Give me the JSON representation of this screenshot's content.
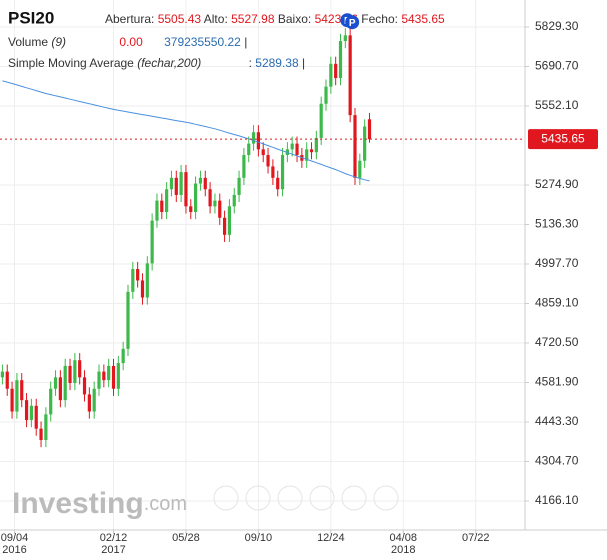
{
  "chart_data": {
    "type": "candlestick",
    "title": "PSI20",
    "header": {
      "open_label": "Abertura:",
      "high_label": "Alto:",
      "low_label": "Baixo:",
      "close_label": "Fecho:",
      "volume_name": "Volume",
      "volume_param": "(9)",
      "volume_avg": "0.00",
      "volume_value": "379235550.22",
      "separator": "|",
      "sma_name": "Simple Moving Average",
      "sma_param": "(fechar,200)",
      "sma_colon": ":"
    },
    "watermark": "Investing",
    "watermark_suffix": ".com",
    "pivot_markers": [
      "P",
      "P"
    ],
    "up_color": "#3cb94a",
    "down_color": "#e0171e",
    "sma_color": "#4a90e2",
    "open": [
      4600,
      4620,
      4560,
      4480,
      4590,
      4520,
      4450,
      4500,
      4420,
      4380,
      4470,
      4560,
      4600,
      4520,
      4640,
      4580,
      4660,
      4600,
      4540,
      4480,
      4560,
      4620,
      4590,
      4640,
      4560,
      4650,
      4700,
      4900,
      4980,
      4940,
      4880,
      5000,
      5150,
      5220,
      5180,
      5260,
      5300,
      5240,
      5320,
      5200,
      5180,
      5280,
      5300,
      5260,
      5200,
      5220,
      5160,
      5100,
      5200,
      5240,
      5300,
      5380,
      5420,
      5460,
      5400,
      5380,
      5340,
      5300,
      5260,
      5380,
      5400,
      5420,
      5380,
      5360,
      5400,
      5390,
      5440,
      5560,
      5620,
      5700,
      5650,
      5780,
      5800,
      5520,
      5300,
      5360,
      5505.43
    ],
    "high": [
      4645,
      4645,
      4585,
      4615,
      4615,
      4545,
      4525,
      4525,
      4445,
      4495,
      4585,
      4625,
      4625,
      4665,
      4665,
      4685,
      4685,
      4625,
      4565,
      4585,
      4645,
      4645,
      4665,
      4665,
      4675,
      4725,
      4925,
      5005,
      5005,
      4965,
      5025,
      5175,
      5245,
      5245,
      5285,
      5325,
      5325,
      5345,
      5345,
      5225,
      5305,
      5325,
      5325,
      5285,
      5245,
      5245,
      5185,
      5225,
      5265,
      5325,
      5405,
      5445,
      5485,
      5485,
      5425,
      5405,
      5365,
      5325,
      5405,
      5425,
      5445,
      5445,
      5405,
      5425,
      5425,
      5465,
      5585,
      5645,
      5725,
      5725,
      5805,
      5825,
      5825,
      5545,
      5385,
      5505,
      5527.98
    ],
    "low": [
      4575,
      4535,
      4455,
      4455,
      4495,
      4425,
      4425,
      4395,
      4355,
      4355,
      4445,
      4535,
      4495,
      4495,
      4555,
      4555,
      4575,
      4515,
      4455,
      4455,
      4535,
      4565,
      4565,
      4535,
      4535,
      4625,
      4675,
      4875,
      4915,
      4855,
      4855,
      4975,
      5125,
      5155,
      5155,
      5235,
      5215,
      5215,
      5175,
      5155,
      5155,
      5255,
      5235,
      5175,
      5175,
      5135,
      5075,
      5075,
      5175,
      5215,
      5275,
      5355,
      5395,
      5375,
      5355,
      5315,
      5275,
      5235,
      5235,
      5355,
      5375,
      5355,
      5335,
      5335,
      5365,
      5365,
      5415,
      5535,
      5595,
      5625,
      5625,
      5755,
      5495,
      5275,
      5275,
      5335,
      5423.46
    ],
    "close": [
      4620,
      4560,
      4480,
      4590,
      4520,
      4450,
      4500,
      4420,
      4380,
      4470,
      4560,
      4600,
      4520,
      4640,
      4580,
      4660,
      4600,
      4540,
      4480,
      4560,
      4620,
      4590,
      4640,
      4560,
      4650,
      4700,
      4900,
      4980,
      4940,
      4880,
      5000,
      5150,
      5220,
      5180,
      5260,
      5300,
      5240,
      5320,
      5200,
      5180,
      5280,
      5300,
      5260,
      5200,
      5220,
      5160,
      5100,
      5200,
      5240,
      5300,
      5380,
      5420,
      5460,
      5400,
      5380,
      5340,
      5300,
      5260,
      5380,
      5400,
      5420,
      5380,
      5360,
      5400,
      5390,
      5440,
      5560,
      5620,
      5700,
      5650,
      5780,
      5800,
      5520,
      5300,
      5360,
      5480,
      5435.65
    ],
    "sma": [
      5640,
      5636,
      5631,
      5626,
      5621,
      5616,
      5611,
      5606,
      5601,
      5596,
      5592,
      5588,
      5584,
      5580,
      5576,
      5572,
      5568,
      5564,
      5560,
      5556,
      5552,
      5548,
      5544,
      5540,
      5537,
      5534,
      5531,
      5528,
      5525,
      5522,
      5519,
      5516,
      5513,
      5510,
      5507,
      5504,
      5501,
      5498,
      5495,
      5492,
      5488,
      5484,
      5480,
      5476,
      5472,
      5467,
      5462,
      5457,
      5452,
      5447,
      5442,
      5437,
      5431,
      5425,
      5419,
      5413,
      5407,
      5401,
      5395,
      5389,
      5383,
      5377,
      5371,
      5365,
      5359,
      5353,
      5347,
      5341,
      5335,
      5329,
      5322,
      5315,
      5309,
      5303,
      5298,
      5293,
      5289.38
    ],
    "xlim": [
      -0.5,
      108.2
    ],
    "xticks": [
      {
        "value": 2.5,
        "label": "09/04"
      },
      {
        "value": 23,
        "label": "02/12"
      },
      {
        "value": 38,
        "label": "05/28"
      },
      {
        "value": 53,
        "label": "09/10"
      },
      {
        "value": 68,
        "label": "12/24"
      },
      {
        "value": 83,
        "label": "04/08"
      },
      {
        "value": 98,
        "label": "07/22"
      }
    ],
    "xtick_years": [
      {
        "value": 2.5,
        "label": "2016"
      },
      {
        "value": 23,
        "label": "2017"
      },
      {
        "value": 83,
        "label": "2018"
      }
    ],
    "ylim": [
      4064.3,
      5924.0
    ],
    "yticks": [
      {
        "value": 5829.3,
        "label": "5829.30"
      },
      {
        "value": 5690.7,
        "label": "5690.70"
      },
      {
        "value": 5552.1,
        "label": "5552.10"
      },
      {
        "value": 5274.9,
        "label": "5274.90"
      },
      {
        "value": 5136.3,
        "label": "5136.30"
      },
      {
        "value": 4997.7,
        "label": "4997.70"
      },
      {
        "value": 4859.1,
        "label": "4859.10"
      },
      {
        "value": 4720.5,
        "label": "4720.50"
      },
      {
        "value": 4581.9,
        "label": "4581.90"
      },
      {
        "value": 4443.3,
        "label": "4443.30"
      },
      {
        "value": 4304.7,
        "label": "4304.70"
      },
      {
        "value": 4166.1,
        "label": "4166.10"
      }
    ],
    "grid": true
  }
}
